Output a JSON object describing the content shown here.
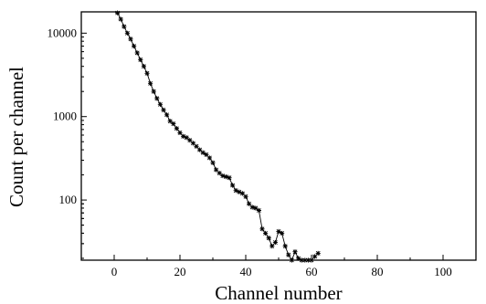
{
  "chart_data": {
    "type": "scatter",
    "xlabel": "Channel number",
    "ylabel": "Count per channel",
    "xlim": [
      -10,
      110
    ],
    "ylim": [
      19,
      18000
    ],
    "yscale": "log",
    "grid": false,
    "line": true,
    "marker": "star",
    "x_ticks": [
      0,
      20,
      40,
      60,
      80,
      100
    ],
    "x_tick_labels": [
      "0",
      "20",
      "40",
      "60",
      "80",
      "100"
    ],
    "y_ticks": [
      100,
      1000,
      10000
    ],
    "y_tick_labels": [
      "100",
      "1000",
      "10000"
    ],
    "series": [
      {
        "x": [
          1,
          2,
          3,
          4,
          5,
          6,
          7,
          8,
          9,
          10,
          11,
          12,
          13,
          14,
          15,
          16,
          17,
          18,
          19,
          20,
          21,
          22,
          23,
          24,
          25,
          26,
          27,
          28,
          29,
          30,
          31,
          32,
          33,
          34,
          35,
          36,
          37,
          38,
          39,
          40,
          41,
          42,
          43,
          44,
          45,
          46,
          47,
          48,
          49,
          50,
          51,
          52,
          53,
          54,
          55,
          56,
          57,
          58,
          59,
          60,
          61,
          62
        ],
        "y": [
          17500,
          14700,
          12000,
          10000,
          8500,
          7000,
          5800,
          4800,
          4000,
          3300,
          2500,
          2000,
          1650,
          1400,
          1200,
          1050,
          880,
          820,
          720,
          640,
          580,
          560,
          520,
          480,
          440,
          400,
          370,
          350,
          320,
          280,
          230,
          210,
          195,
          190,
          185,
          150,
          130,
          125,
          120,
          110,
          90,
          82,
          80,
          75,
          45,
          40,
          35,
          28,
          31,
          42,
          40,
          28,
          22,
          19,
          24,
          20,
          19,
          19,
          18,
          18,
          21,
          23
        ]
      }
    ]
  }
}
